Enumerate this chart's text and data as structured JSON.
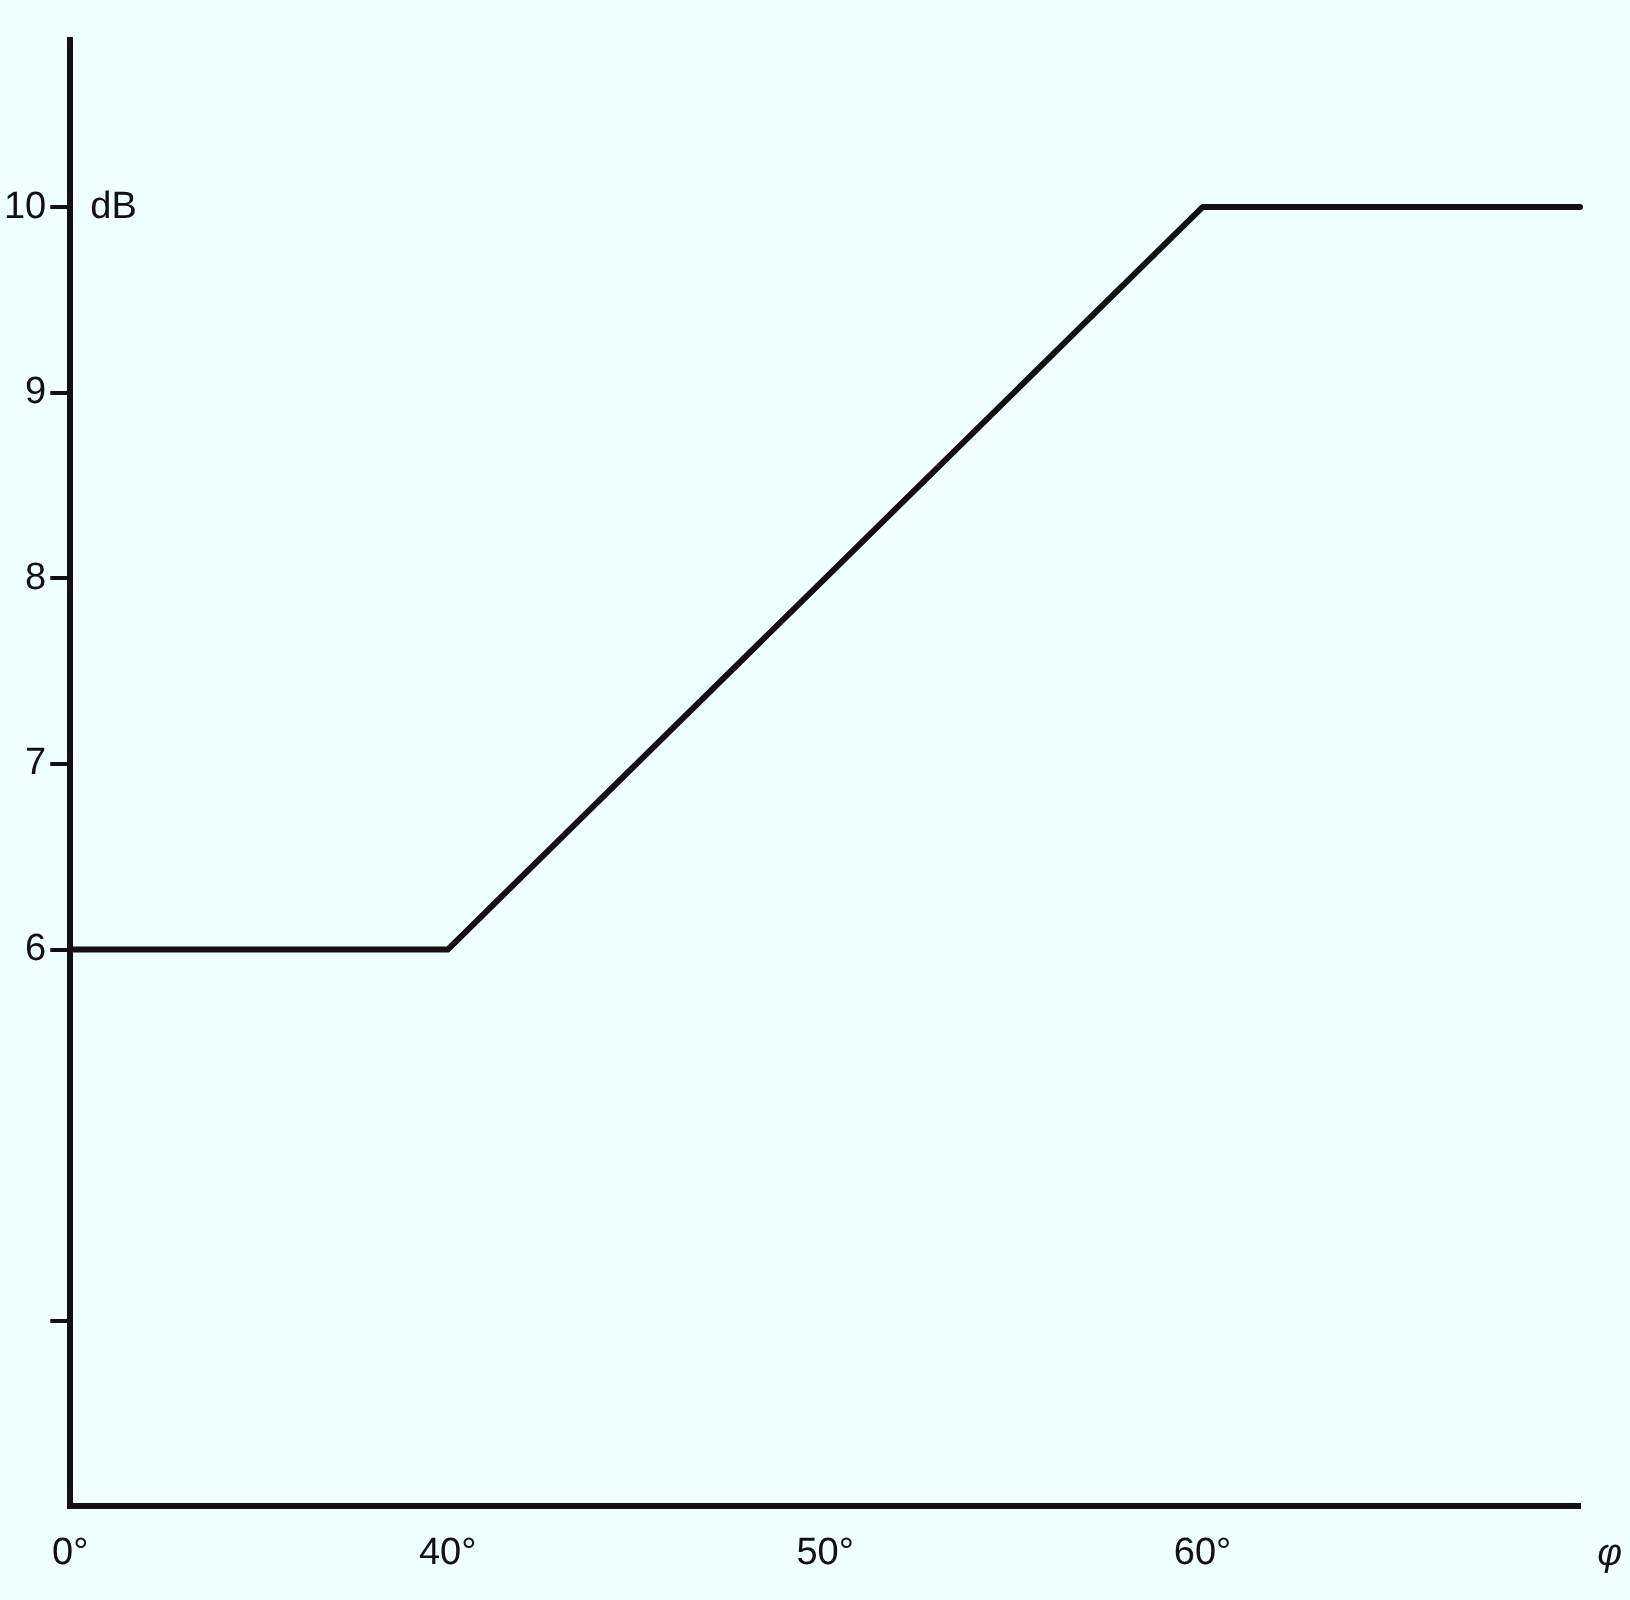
{
  "chart_data": {
    "type": "line",
    "xlabel": "φ",
    "ylabel": "dB",
    "categories": [
      "0°",
      "40°",
      "50°",
      "60°",
      null
    ],
    "series": [
      {
        "color": "#111111",
        "values": [
          6,
          6,
          8,
          10,
          10
        ]
      }
    ],
    "ylim": [
      3,
      10.9
    ],
    "yticks": [
      {
        "value": 4,
        "label": null
      },
      6,
      7,
      8,
      9,
      10
    ],
    "grid": false,
    "legend": false,
    "marker": "none",
    "line_style": "solid"
  }
}
